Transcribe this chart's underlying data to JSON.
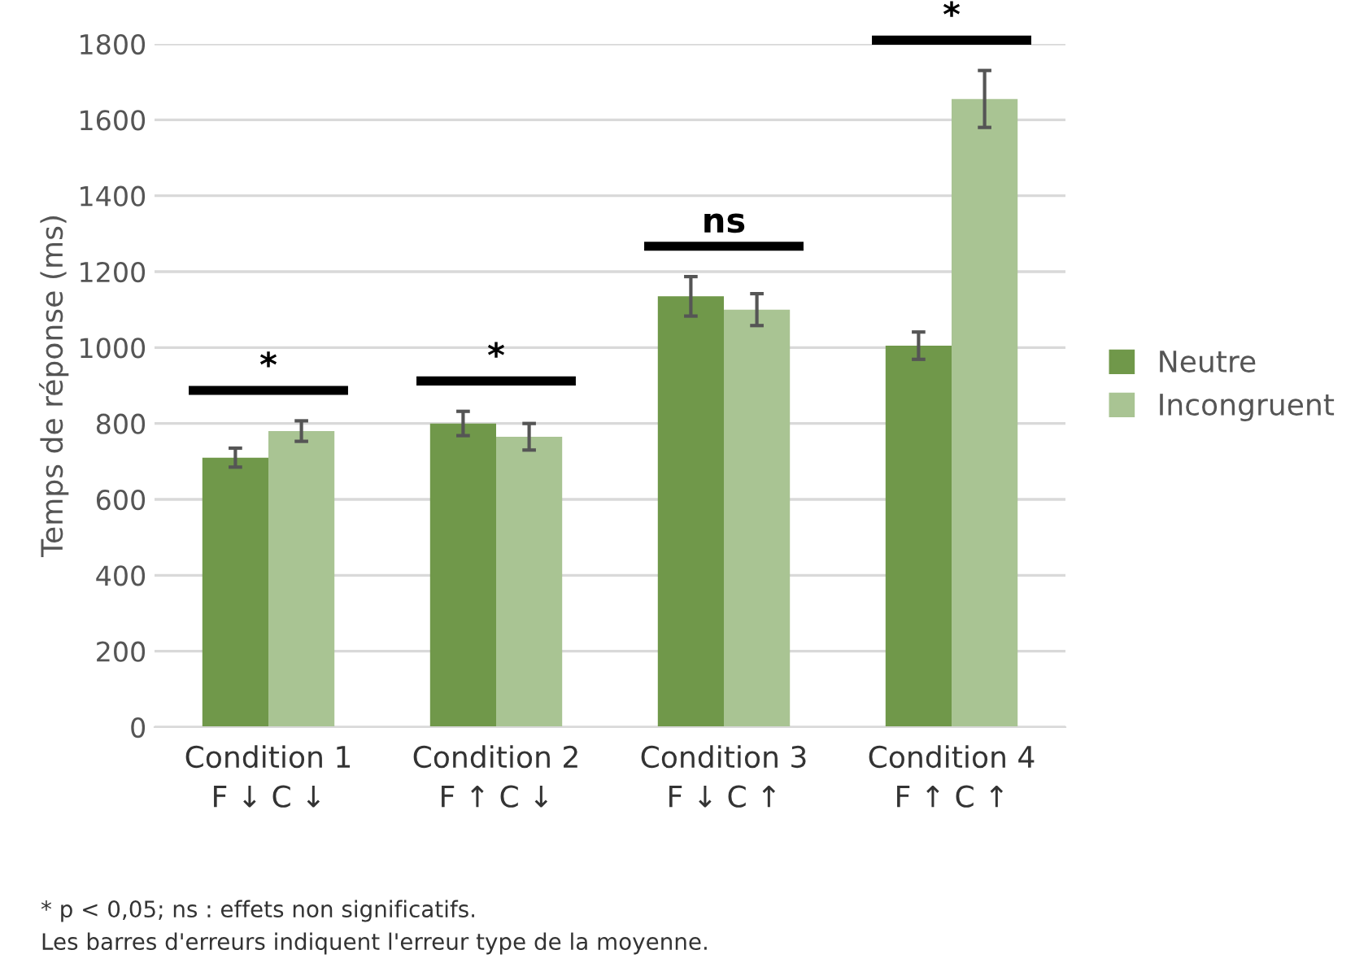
{
  "chart_data": {
    "type": "bar",
    "ylabel": "Temps de réponse (ms)",
    "categories": [
      "Condition 1\nF ↓ C ↓",
      "Condition 2\nF ↑ C ↓",
      "Condition 3\nF ↓ C ↑",
      "Condition 4\nF ↑ C ↑"
    ],
    "series": [
      {
        "name": "Neutre",
        "color": "#70984a",
        "values": [
          710,
          800,
          1135,
          1005
        ],
        "errors": [
          25,
          32,
          52,
          36
        ]
      },
      {
        "name": "Incongruent",
        "color": "#a9c493",
        "values": [
          780,
          765,
          1100,
          1655
        ],
        "errors": [
          27,
          35,
          42,
          75
        ]
      }
    ],
    "ylim": [
      0,
      1800
    ],
    "yticks": [
      0,
      200,
      400,
      600,
      800,
      1000,
      1200,
      1400,
      1600,
      1800
    ],
    "grid": "y",
    "legend": "right",
    "annotations": [
      "*",
      "*",
      "ns",
      "*",
      "* p < 0,05; ns : effets non significatifs.",
      "Les barres d'erreurs indiquent l'erreur type de la moyenne."
    ]
  }
}
